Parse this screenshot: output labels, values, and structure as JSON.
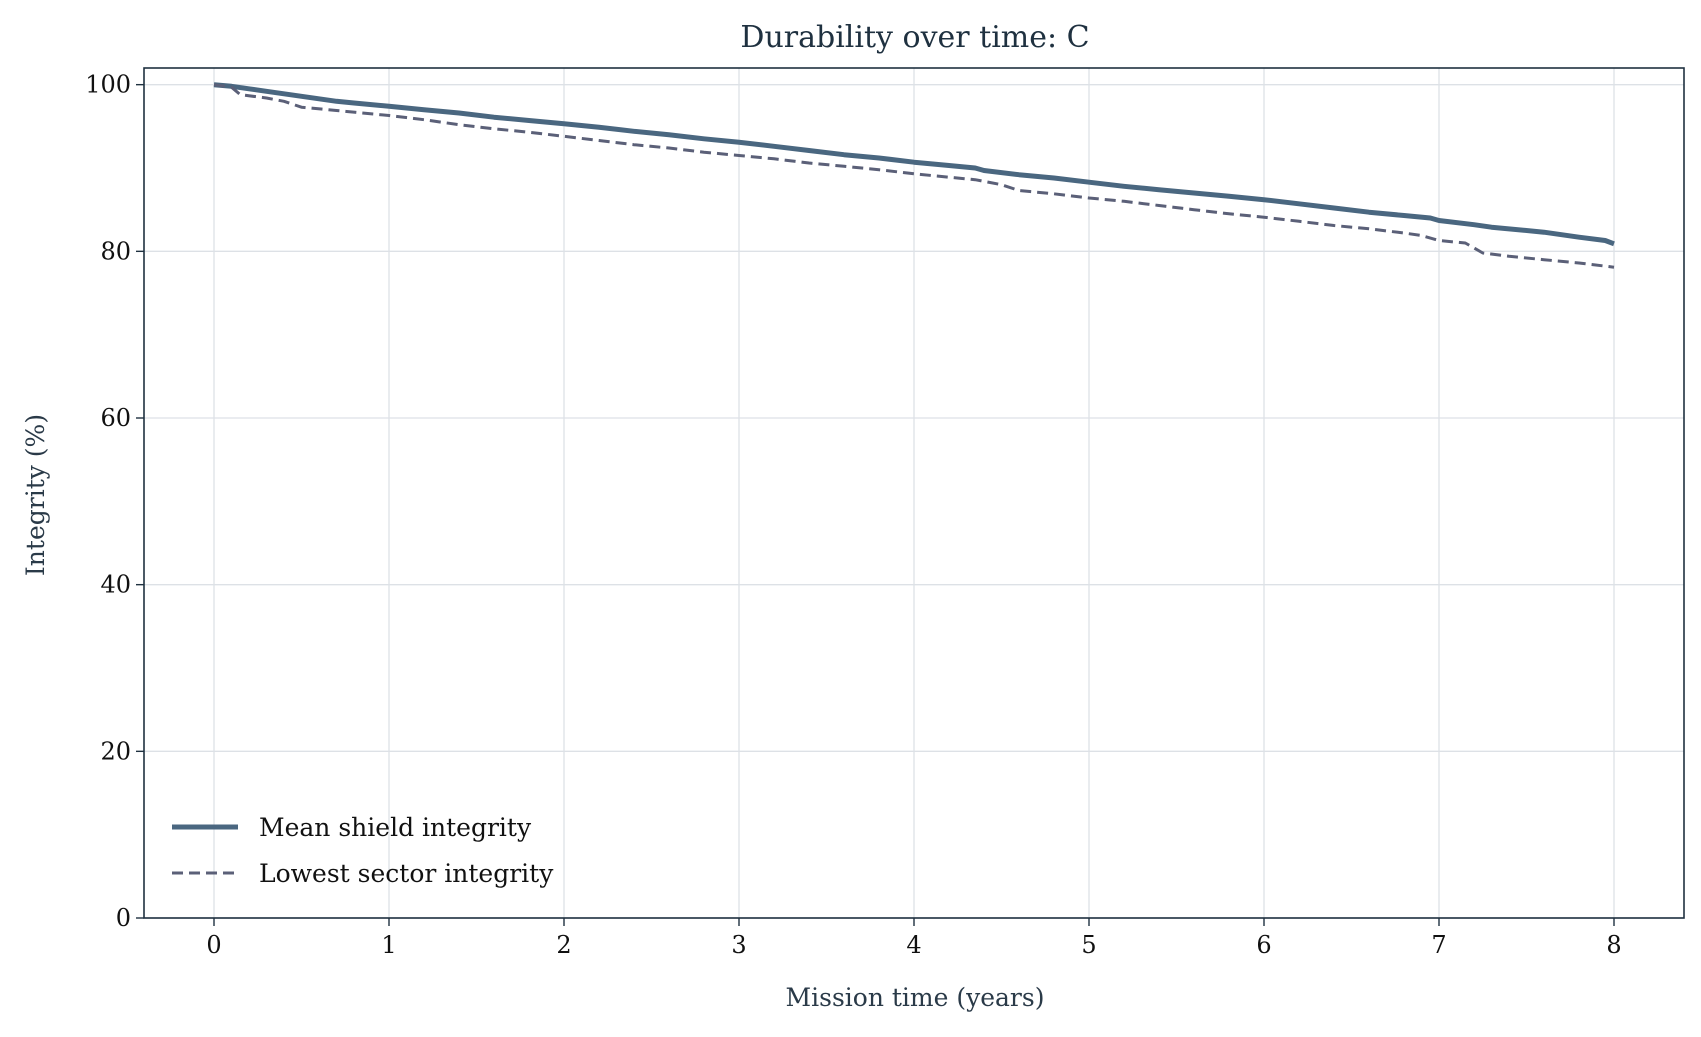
{
  "chart_data": {
    "type": "line",
    "title": "Durability over time: C",
    "xlabel": "Mission time (years)",
    "ylabel": "Integrity (%)",
    "xlim": [
      -0.4,
      8.4
    ],
    "ylim": [
      0,
      102
    ],
    "xticks": [
      0,
      1,
      2,
      3,
      4,
      5,
      6,
      7,
      8
    ],
    "yticks": [
      0,
      20,
      40,
      60,
      80,
      100
    ],
    "grid": true,
    "legend_position": "lower-left",
    "series": [
      {
        "name": "Mean shield integrity",
        "style": "solid",
        "color": "#4a6780",
        "x": [
          0,
          0.1,
          0.2,
          0.3,
          0.4,
          0.5,
          0.6,
          0.7,
          0.8,
          1.0,
          1.2,
          1.4,
          1.6,
          1.8,
          2.0,
          2.2,
          2.4,
          2.6,
          2.8,
          3.0,
          3.2,
          3.4,
          3.6,
          3.8,
          4.0,
          4.2,
          4.35,
          4.4,
          4.6,
          4.8,
          5.0,
          5.2,
          5.4,
          5.6,
          5.8,
          6.0,
          6.2,
          6.4,
          6.6,
          6.8,
          6.95,
          7.0,
          7.2,
          7.3,
          7.6,
          7.8,
          7.95,
          8.0
        ],
        "y": [
          100,
          99.8,
          99.5,
          99.2,
          98.9,
          98.6,
          98.3,
          98.0,
          97.8,
          97.4,
          97.0,
          96.6,
          96.1,
          95.7,
          95.3,
          94.9,
          94.4,
          94.0,
          93.5,
          93.1,
          92.6,
          92.1,
          91.6,
          91.2,
          90.7,
          90.3,
          90.0,
          89.7,
          89.2,
          88.8,
          88.3,
          87.8,
          87.4,
          87.0,
          86.6,
          86.2,
          85.7,
          85.2,
          84.7,
          84.3,
          84.0,
          83.7,
          83.2,
          82.9,
          82.3,
          81.7,
          81.3,
          80.9
        ]
      },
      {
        "name": "Lowest sector integrity",
        "style": "dashed",
        "color": "#5b6078",
        "x": [
          0,
          0.1,
          0.15,
          0.3,
          0.4,
          0.5,
          0.7,
          1.0,
          1.2,
          1.4,
          1.6,
          1.8,
          2.0,
          2.2,
          2.4,
          2.6,
          2.8,
          3.0,
          3.2,
          3.4,
          3.6,
          3.8,
          4.0,
          4.2,
          4.35,
          4.5,
          4.6,
          4.8,
          5.0,
          5.2,
          5.4,
          5.6,
          5.8,
          6.0,
          6.2,
          6.4,
          6.6,
          6.8,
          6.9,
          7.0,
          7.15,
          7.25,
          7.4,
          7.6,
          7.8,
          8.0
        ],
        "y": [
          100,
          99.7,
          98.8,
          98.4,
          98.0,
          97.3,
          96.9,
          96.3,
          95.8,
          95.2,
          94.7,
          94.3,
          93.8,
          93.3,
          92.8,
          92.4,
          91.9,
          91.5,
          91.1,
          90.6,
          90.2,
          89.8,
          89.3,
          88.9,
          88.6,
          88.0,
          87.3,
          86.9,
          86.4,
          86.0,
          85.5,
          85.0,
          84.5,
          84.1,
          83.6,
          83.1,
          82.7,
          82.2,
          81.9,
          81.3,
          81.0,
          79.8,
          79.4,
          79.0,
          78.6,
          78.1
        ]
      }
    ]
  }
}
